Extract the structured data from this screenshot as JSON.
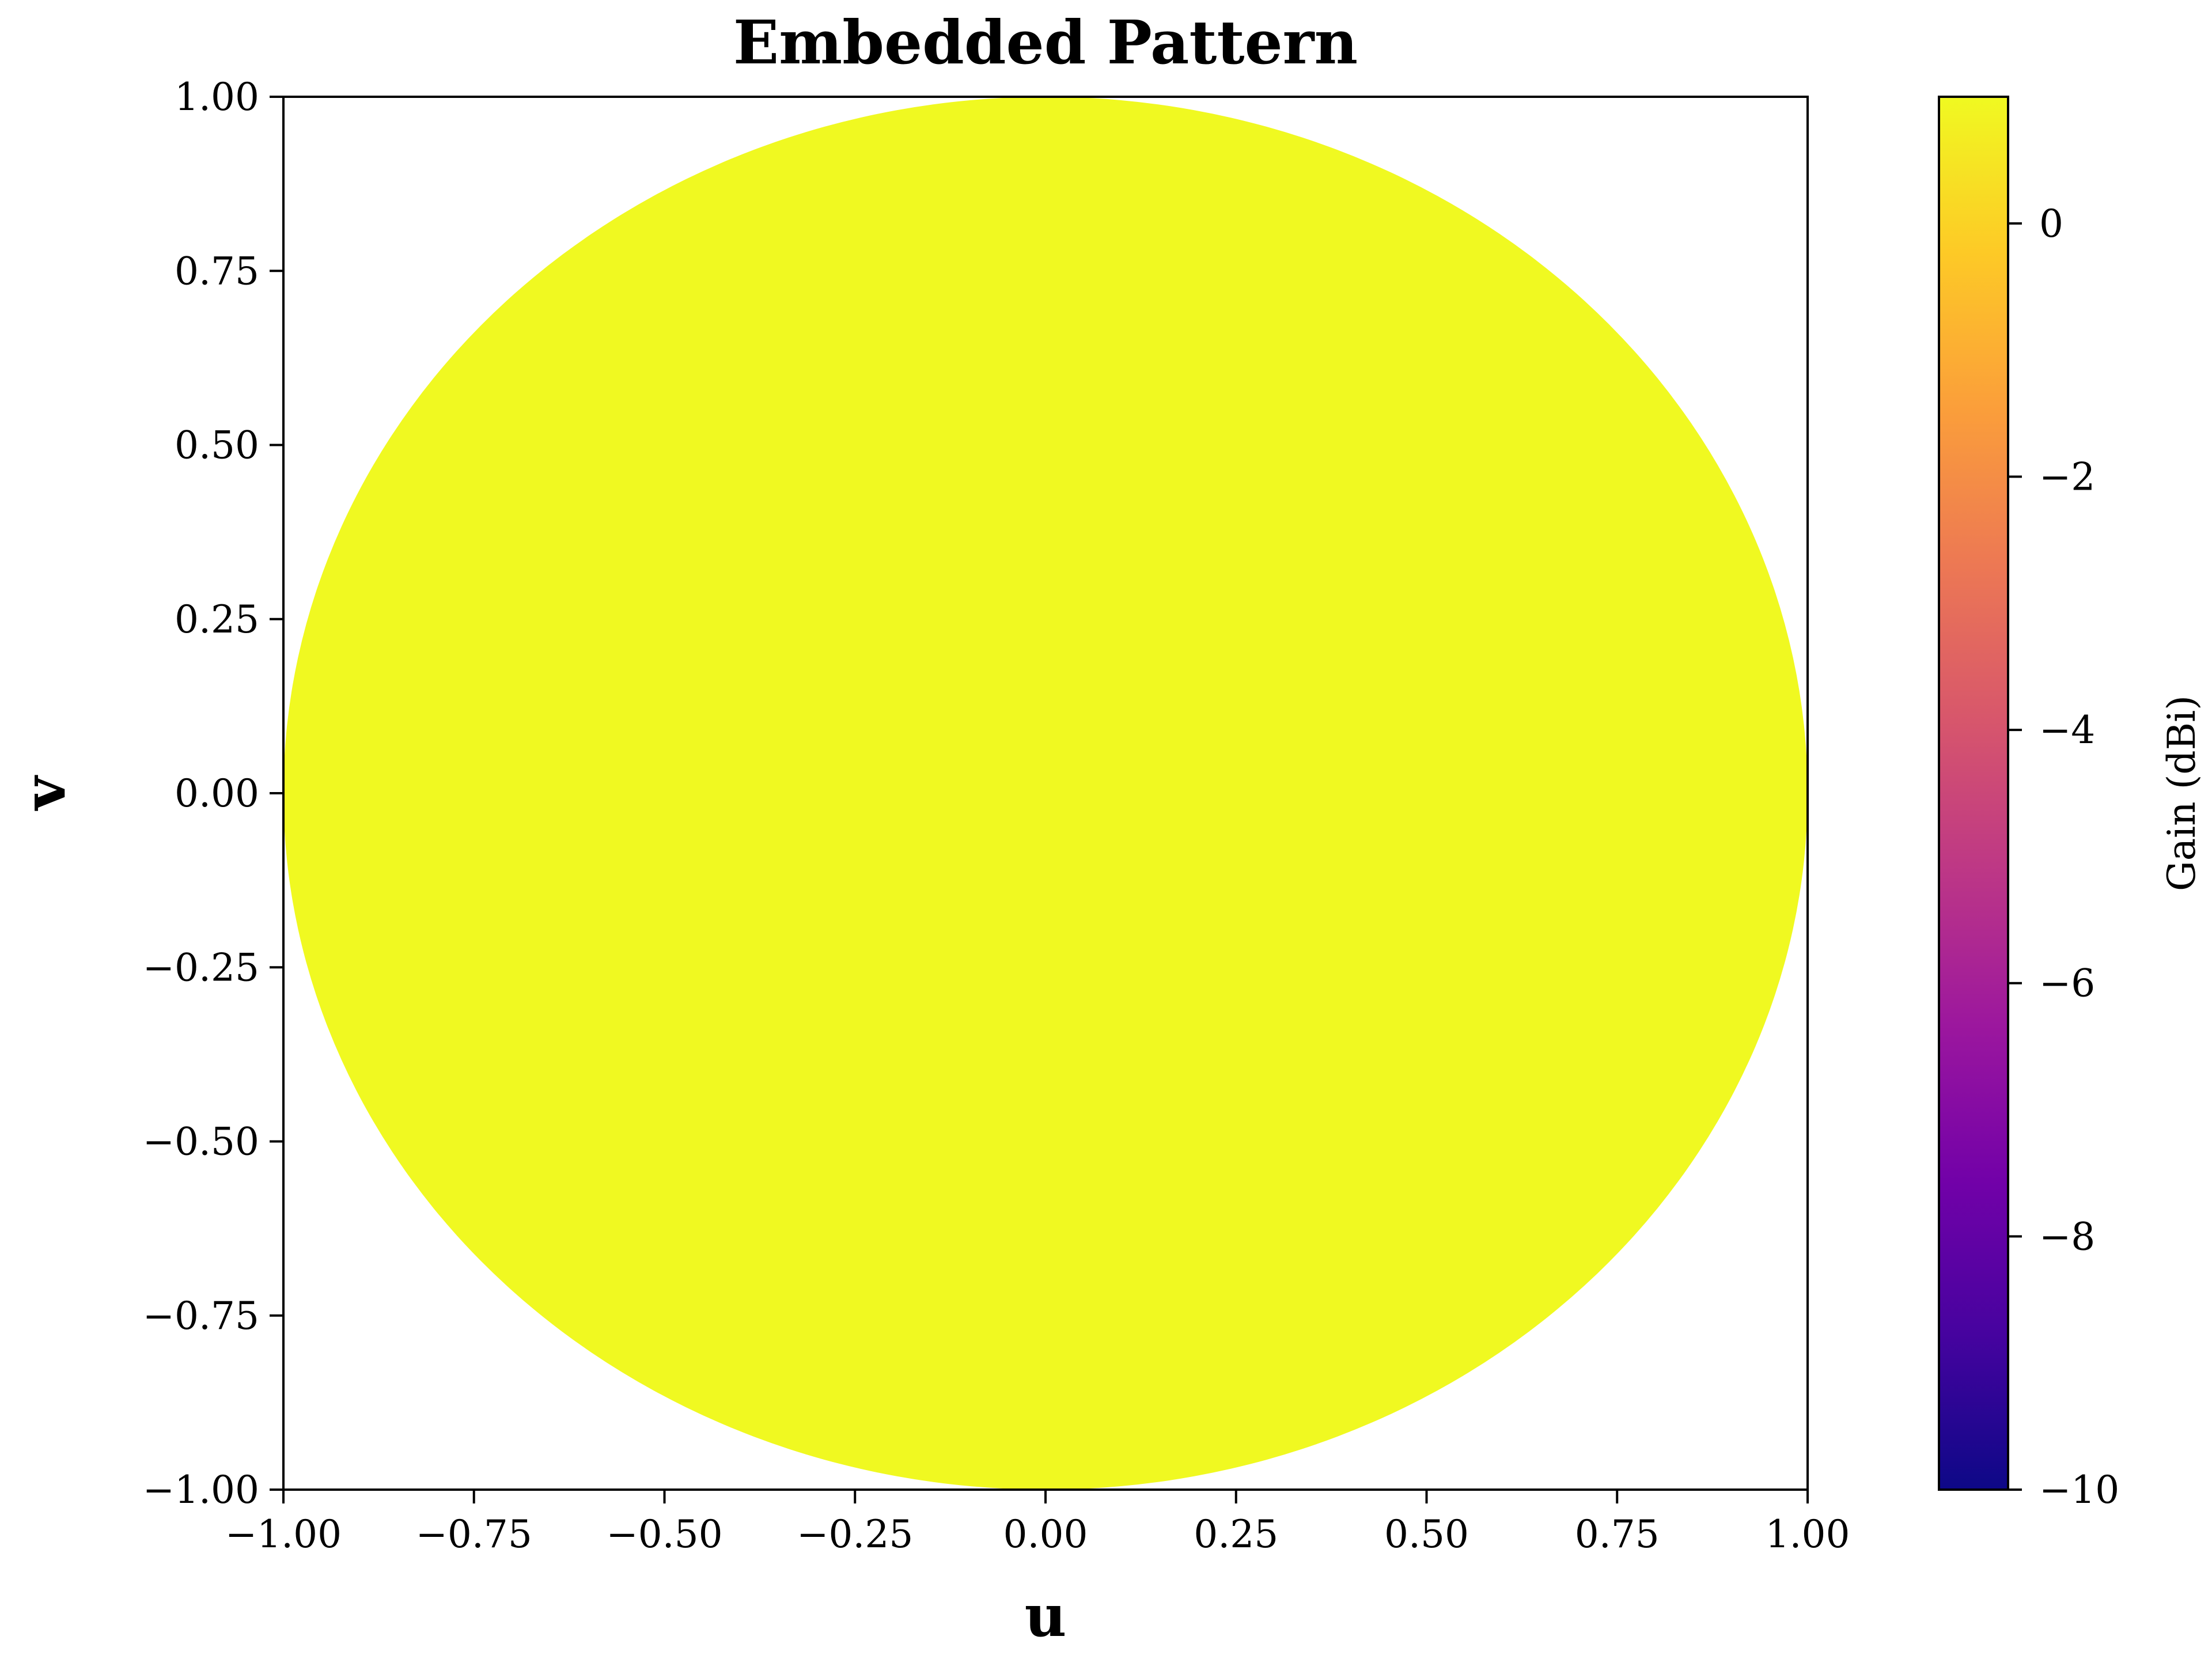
{
  "chart_data": {
    "type": "heatmap",
    "title": "Embedded Pattern",
    "xlabel": "u",
    "ylabel": "v",
    "xlim": [
      -1,
      1
    ],
    "ylim": [
      -1,
      1
    ],
    "x_ticks": [
      "−1.00",
      "−0.75",
      "−0.50",
      "−0.25",
      "0.00",
      "0.25",
      "0.50",
      "0.75",
      "1.00"
    ],
    "y_ticks": [
      "−1.00",
      "−0.75",
      "−0.50",
      "−0.25",
      "0.00",
      "0.25",
      "0.50",
      "0.75",
      "1.00"
    ],
    "x_tick_values": [
      -1,
      -0.75,
      -0.5,
      -0.25,
      0,
      0.25,
      0.5,
      0.75,
      1
    ],
    "y_tick_values": [
      -1,
      -0.75,
      -0.5,
      -0.25,
      0,
      0.25,
      0.5,
      0.75,
      1
    ],
    "region": {
      "shape": "unit-circle",
      "center": [
        0,
        0
      ],
      "radius": 1,
      "gain_dbi": 1.0,
      "color": "#f0f921"
    },
    "colorbar": {
      "label": "Gain (dBi)",
      "colormap": "plasma",
      "range": [
        -10,
        1
      ],
      "ticks": [
        "0",
        "−2",
        "−4",
        "−6",
        "−8",
        "−10"
      ],
      "tick_values": [
        0,
        -2,
        -4,
        -6,
        -8,
        -10
      ],
      "stops": [
        "#0d0887",
        "#46039f",
        "#7201a8",
        "#9c179e",
        "#bd3786",
        "#d8576b",
        "#ed7953",
        "#fb9f3a",
        "#fdca26",
        "#f0f921"
      ]
    },
    "grid": false
  }
}
